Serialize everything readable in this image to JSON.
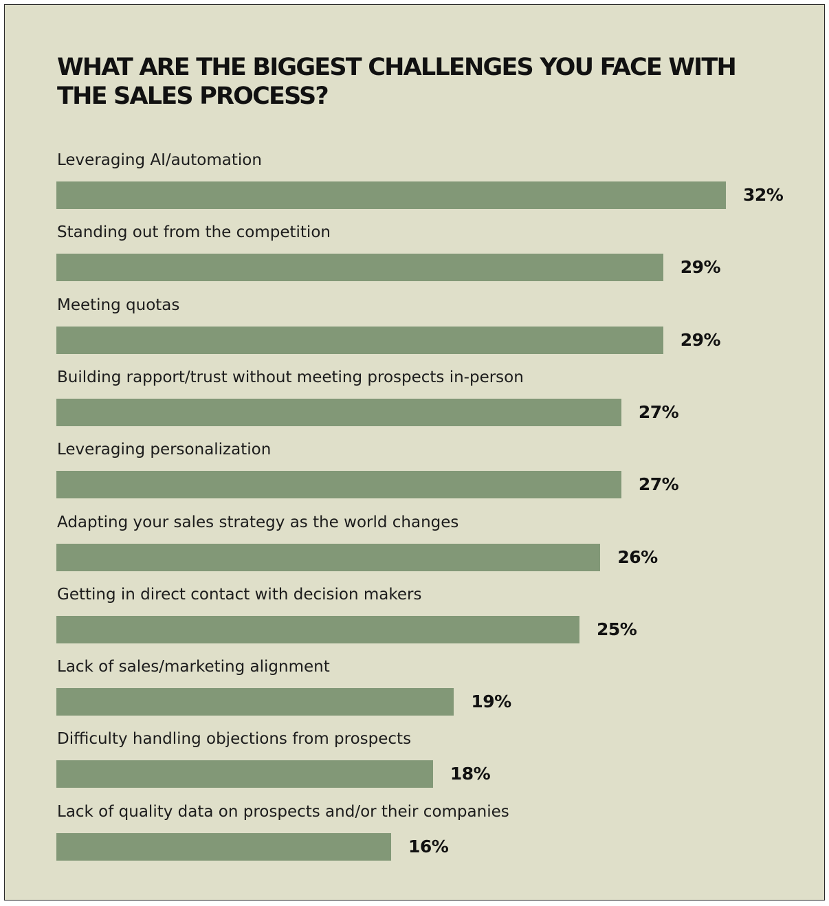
{
  "chart_data": {
    "type": "bar",
    "orientation": "horizontal",
    "title": "WHAT ARE THE BIGGEST CHALLENGES YOU FACE WITH THE SALES PROCESS?",
    "categories": [
      "Leveraging AI/automation",
      "Standing out from the competition",
      "Meeting quotas",
      "Building rapport/trust without meeting prospects in-person",
      "Leveraging personalization",
      "Adapting your sales strategy as the world changes",
      "Getting in direct contact with decision makers",
      "Lack of sales/marketing alignment",
      "Difficulty handling objections from prospects",
      "Lack of quality data on prospects and/or their companies"
    ],
    "values": [
      32,
      29,
      29,
      27,
      27,
      26,
      25,
      19,
      18,
      16
    ],
    "value_labels": [
      "32%",
      "29%",
      "29%",
      "27%",
      "27%",
      "26%",
      "25%",
      "19%",
      "18%",
      "16%"
    ],
    "unit": "%",
    "grid": false,
    "legend": "none",
    "colors": {
      "background": "#dfdfc9",
      "bar": "#829877",
      "text": "#111111",
      "border": "#2b2b2b"
    }
  }
}
